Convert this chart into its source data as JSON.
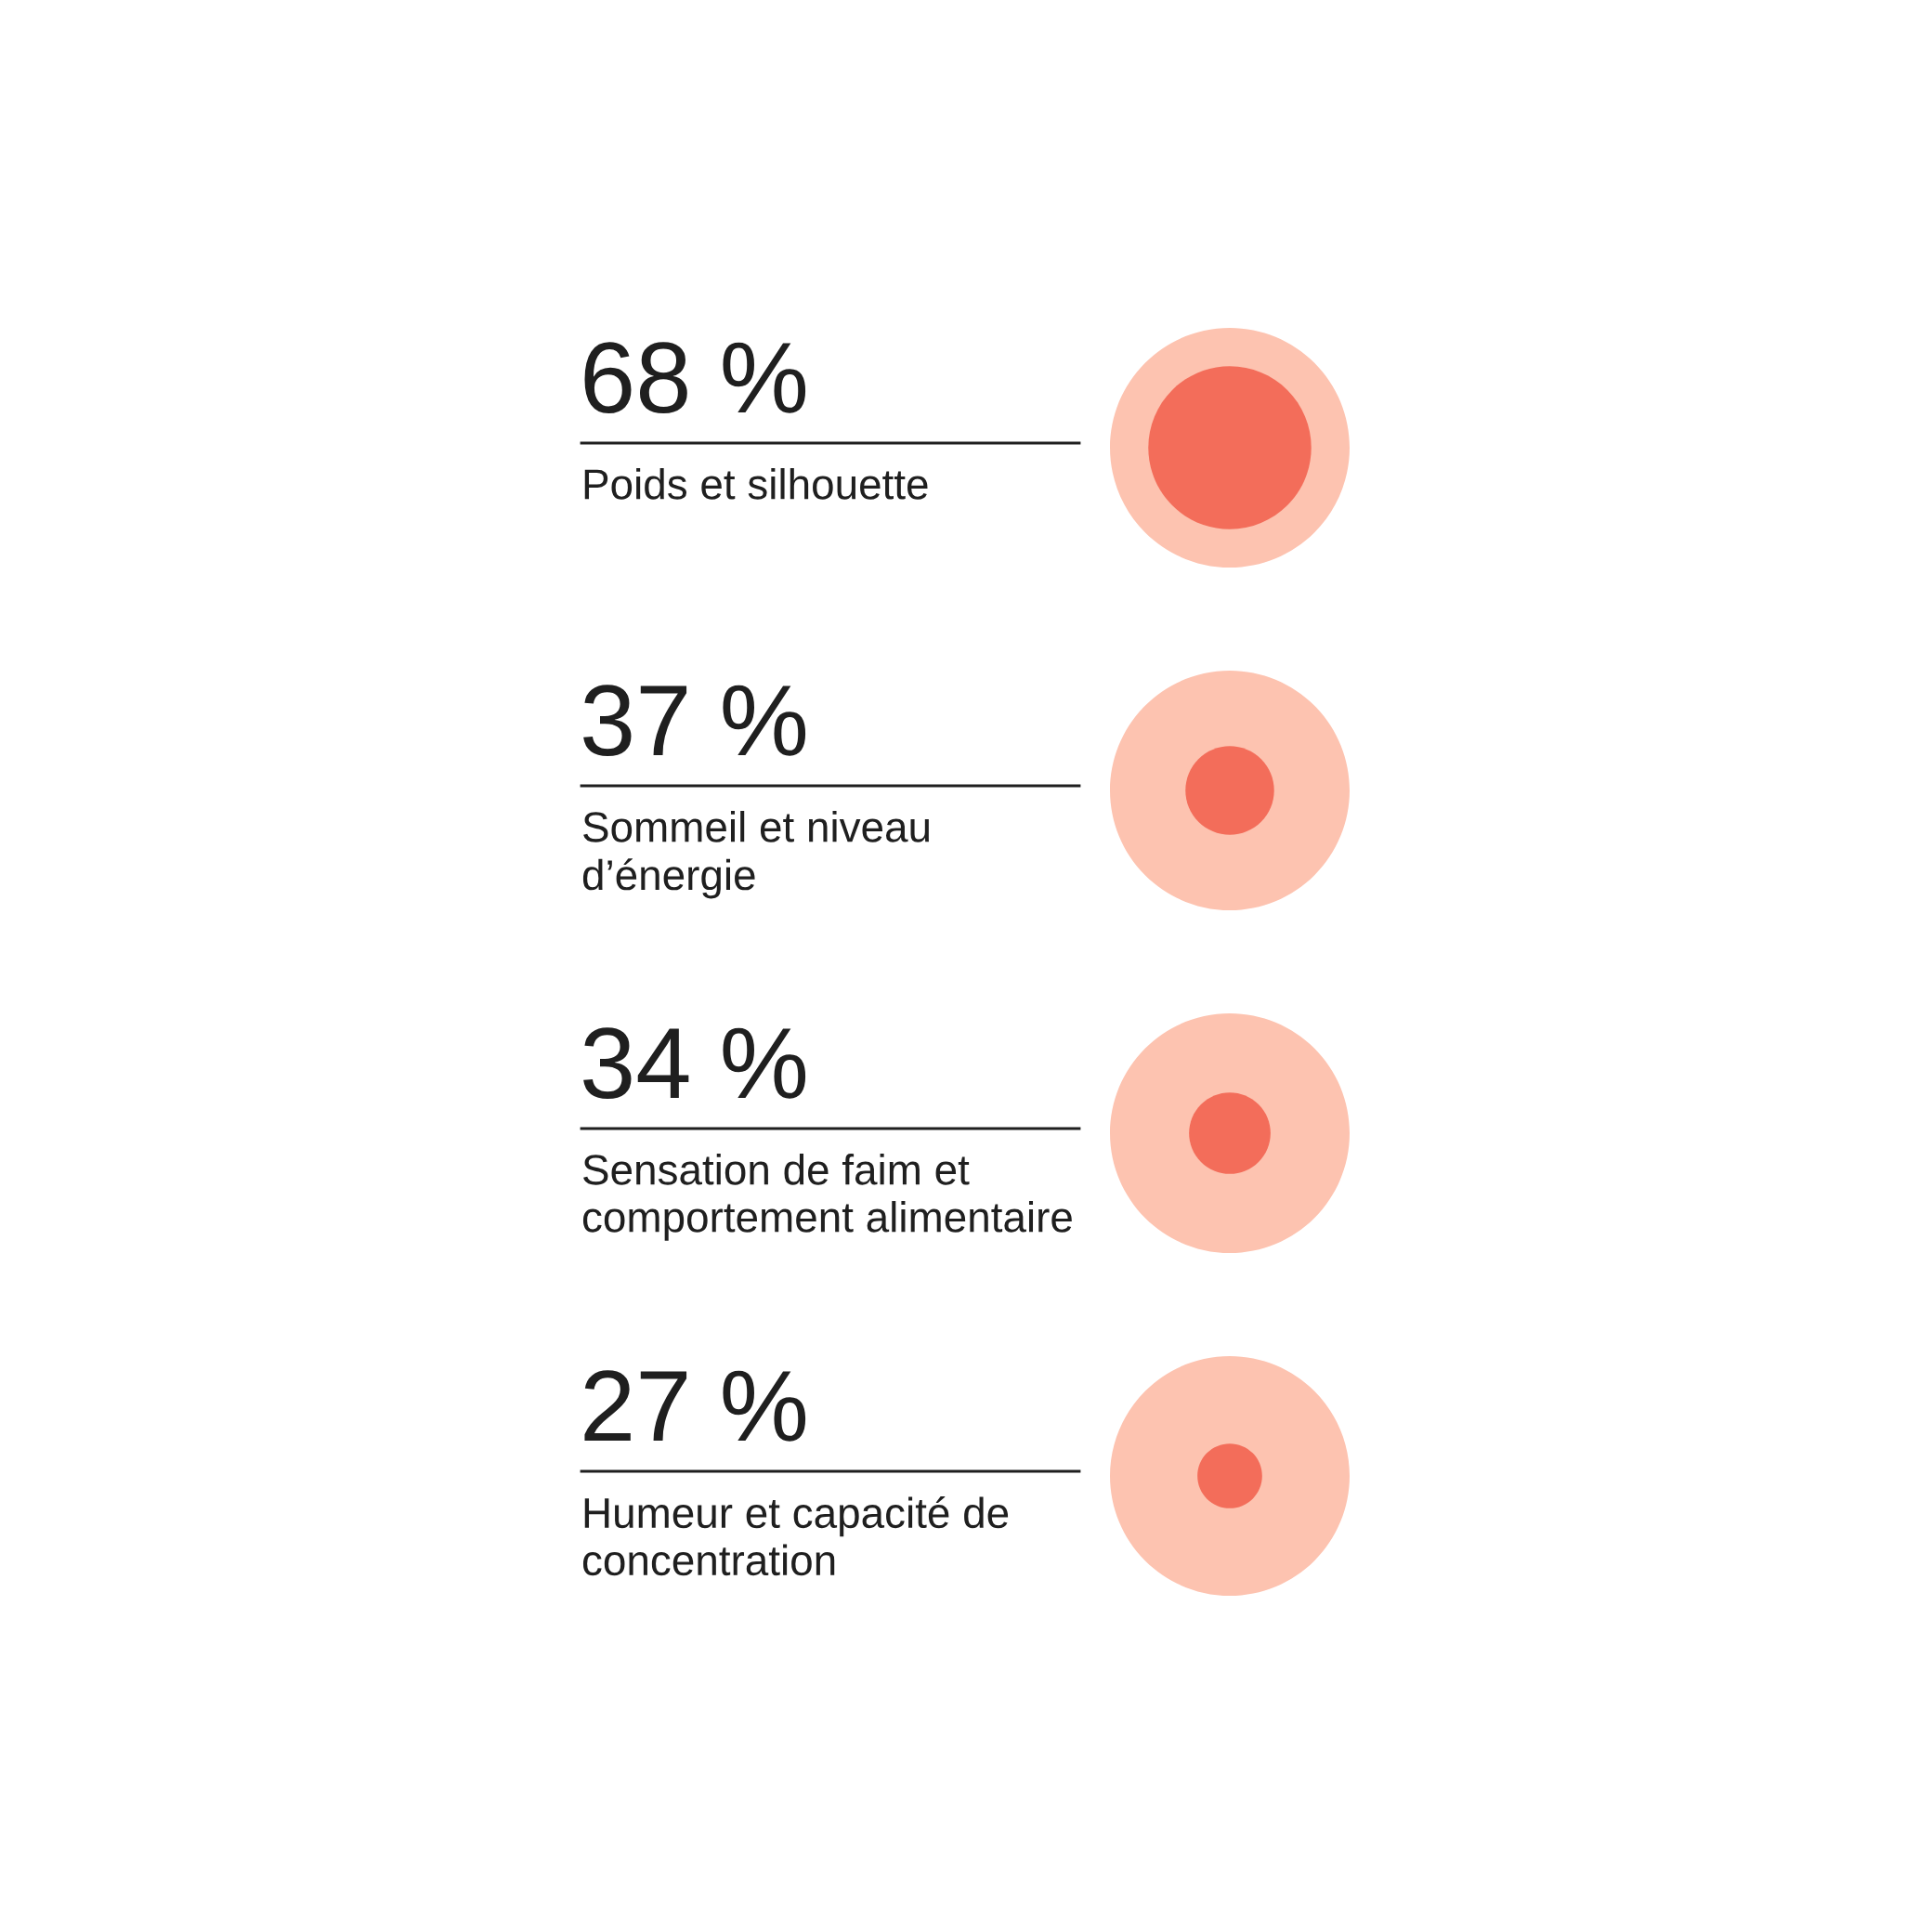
{
  "chart_data": {
    "type": "other",
    "categories": [
      "Poids et silhouette",
      "Sommeil et niveau\nd’énergie",
      "Sensation de faim et\ncomportement alimentaire",
      "Humeur et capacité de\nconcentration"
    ],
    "values": [
      68,
      37,
      34,
      27
    ],
    "value_labels": [
      "68 %",
      "37 %",
      "34 %",
      "27 %"
    ],
    "colors": [
      "#f36d5a",
      "#f36d5a",
      "#f36d5a",
      "#f36d5a"
    ],
    "color": "#fdc3b0"
  }
}
